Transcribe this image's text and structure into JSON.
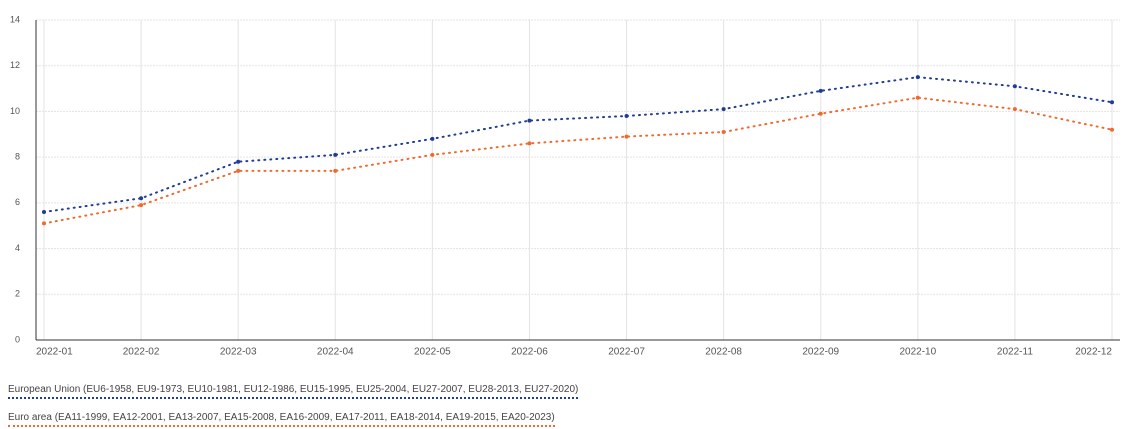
{
  "chart_data": {
    "type": "line",
    "categories": [
      "2022-01",
      "2022-02",
      "2022-03",
      "2022-04",
      "2022-05",
      "2022-06",
      "2022-07",
      "2022-08",
      "2022-09",
      "2022-10",
      "2022-11",
      "2022-12"
    ],
    "series": [
      {
        "name": "European Union (EU6-1958, EU9-1973, EU10-1981, EU12-1986, EU15-1995, EU25-2004, EU27-2007, EU28-2013, EU27-2020)",
        "color": "#1f3d94",
        "values": [
          5.6,
          6.2,
          7.8,
          8.1,
          8.8,
          9.6,
          9.8,
          10.1,
          10.9,
          11.5,
          11.1,
          10.4
        ]
      },
      {
        "name": "Euro area (EA11-1999, EA12-2001, EA13-2007, EA15-2008, EA16-2009, EA17-2011, EA18-2014, EA19-2015, EA20-2023)",
        "color": "#f06a2e",
        "values": [
          5.1,
          5.9,
          7.4,
          7.4,
          8.1,
          8.6,
          8.9,
          9.1,
          9.9,
          10.6,
          10.1,
          9.2
        ]
      }
    ],
    "ylim": [
      0,
      14
    ],
    "yticks": [
      0,
      2,
      4,
      6,
      8,
      10,
      12,
      14
    ],
    "grid": true
  }
}
